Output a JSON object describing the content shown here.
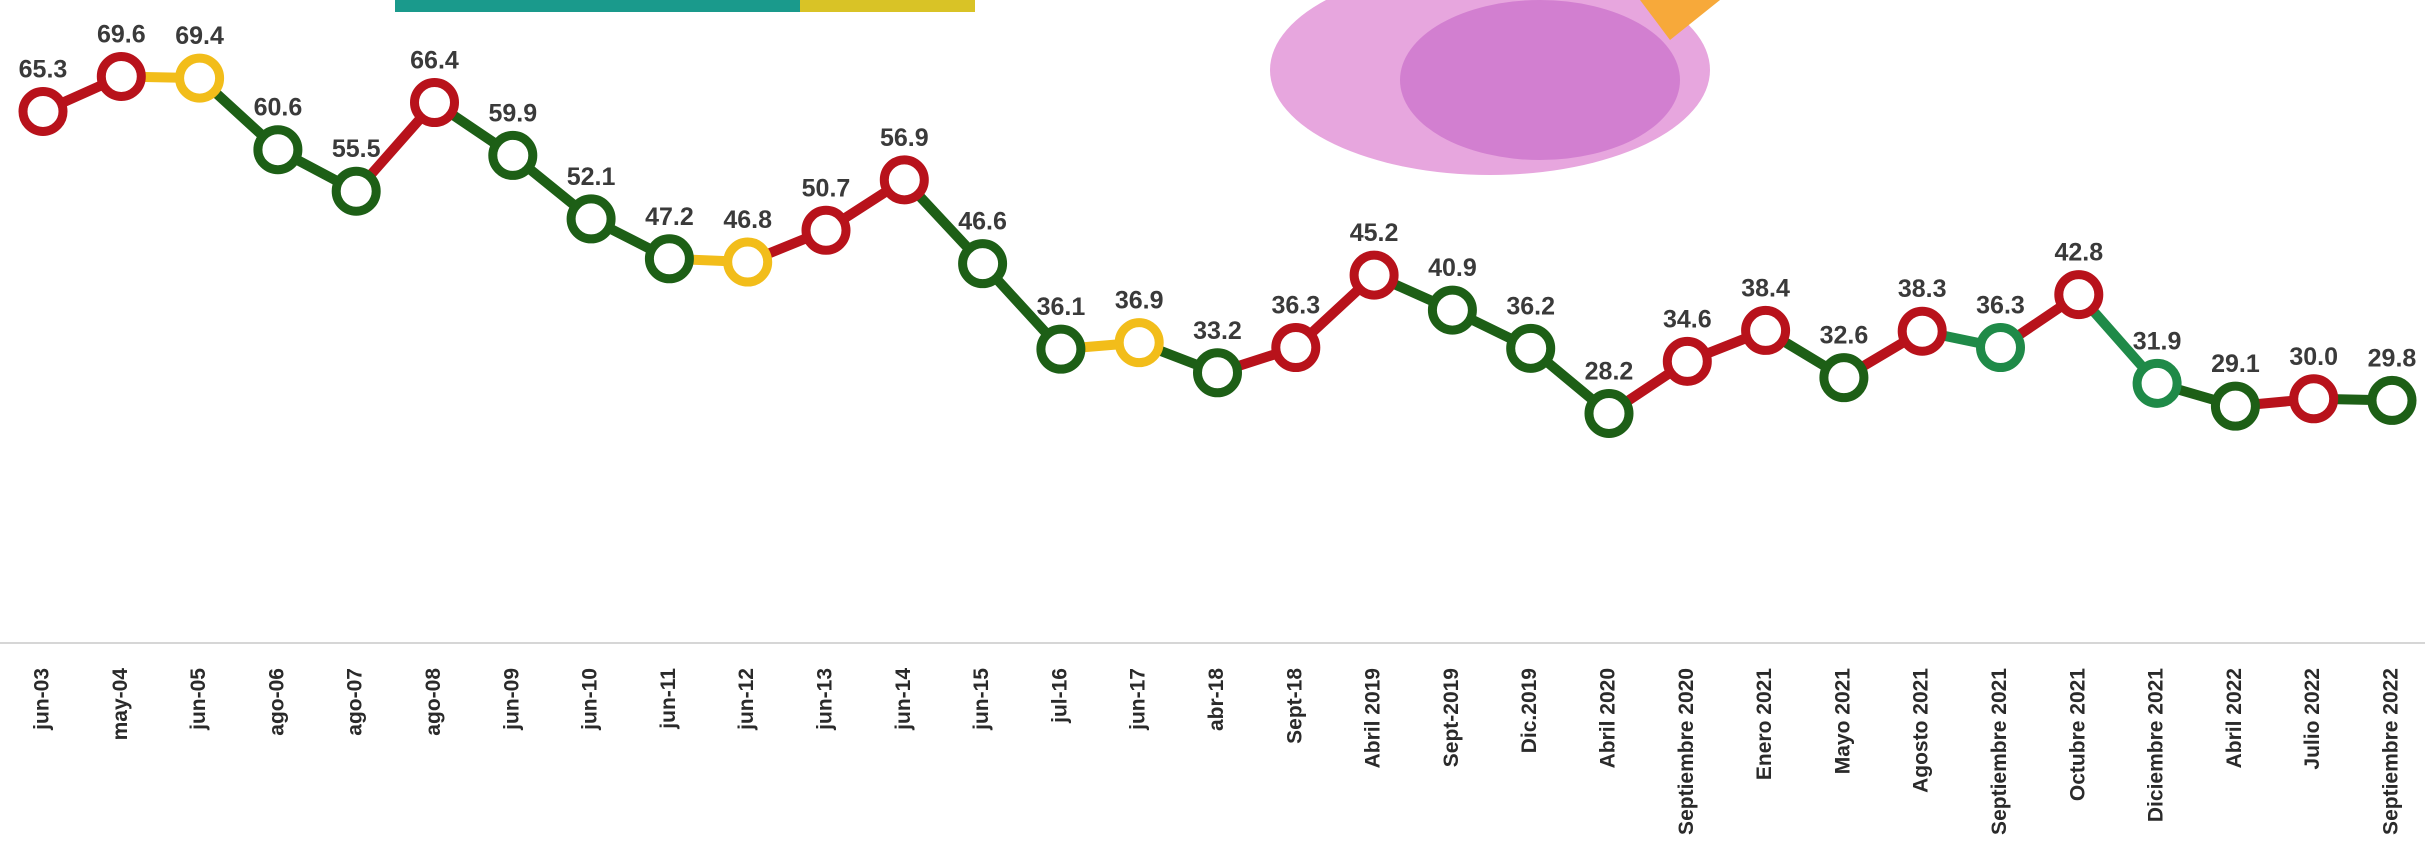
{
  "chart_data": {
    "type": "line",
    "categories": [
      "jun-03",
      "may-04",
      "jun-05",
      "ago-06",
      "ago-07",
      "ago-08",
      "jun-09",
      "jun-10",
      "jun-11",
      "jun-12",
      "jun-13",
      "jun-14",
      "jun-15",
      "jul-16",
      "jun-17",
      "abr-18",
      "Sept-18",
      "Abril 2019",
      "Sept-2019",
      "Dic.2019",
      "Abril 2020",
      "Septiembre 2020",
      "Enero 2021",
      "Mayo 2021",
      "Agosto 2021",
      "Septiembre 2021",
      "Octubre 2021",
      "Diciembre 2021",
      "Abril 2022",
      "Julio 2022",
      "Septiembre 2022"
    ],
    "values": [
      65.3,
      69.6,
      69.4,
      60.6,
      55.5,
      66.4,
      59.9,
      52.1,
      47.2,
      46.8,
      50.7,
      56.9,
      46.6,
      36.1,
      36.9,
      33.2,
      36.3,
      45.2,
      40.9,
      36.2,
      28.2,
      34.6,
      38.4,
      32.6,
      38.3,
      36.3,
      42.8,
      31.9,
      29.1,
      30.0,
      29.8
    ],
    "value_labels": [
      "65.3",
      "69.6",
      "69.4",
      "60.6",
      "55.5",
      "66.4",
      "59.9",
      "52.1",
      "47.2",
      "46.8",
      "50.7",
      "56.9",
      "46.6",
      "36.1",
      "36.9",
      "33.2",
      "36.3",
      "45.2",
      "40.9",
      "36.2",
      "28.2",
      "34.6",
      "38.4",
      "32.6",
      "38.3",
      "36.3",
      "42.8",
      "31.9",
      "29.1",
      "30.0",
      "29.8"
    ],
    "colors": [
      "#b8121b",
      "#b8121b",
      "#f2bd1a",
      "#1d5f16",
      "#1d5f16",
      "#b8121b",
      "#1d5f16",
      "#1d5f16",
      "#1d5f16",
      "#f2bd1a",
      "#b8121b",
      "#b8121b",
      "#1d5f16",
      "#1d5f16",
      "#f2bd1a",
      "#1d5f16",
      "#b8121b",
      "#b8121b",
      "#1d5f16",
      "#1d5f16",
      "#1d5f16",
      "#b8121b",
      "#b8121b",
      "#1d5f16",
      "#b8121b",
      "#1f8a48",
      "#b8121b",
      "#1f8a48",
      "#1d5f16",
      "#b8121b",
      "#1d5f16"
    ]
  }
}
